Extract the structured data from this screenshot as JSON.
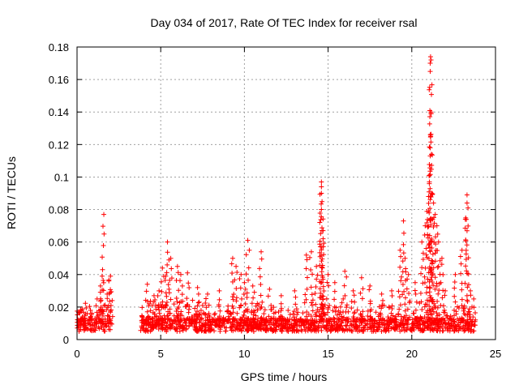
{
  "chart_data": {
    "type": "scatter",
    "title": "Day 034 of 2017, Rate Of TEC Index for receiver rsal",
    "xlabel": "GPS time / hours",
    "ylabel": "ROTI / TECUs",
    "xlim": [
      0,
      25
    ],
    "ylim": [
      0,
      0.18
    ],
    "x_ticks": [
      "0",
      "5",
      "10",
      "15",
      "20",
      "25"
    ],
    "y_ticks": [
      "0",
      "0.02",
      "0.04",
      "0.06",
      "0.08",
      "0.1",
      "0.12",
      "0.14",
      "0.16",
      "0.18"
    ],
    "grid": true,
    "marker": "+",
    "color": "#ff0000",
    "background_band": {
      "baseline": 0.009,
      "noise": 0.004,
      "segments": [
        [
          0.0,
          2.1
        ],
        [
          3.8,
          23.8
        ]
      ]
    },
    "points": [
      [
        0.4,
        0.012
      ],
      [
        0.8,
        0.018
      ],
      [
        1.2,
        0.025
      ],
      [
        1.4,
        0.033
      ],
      [
        1.5,
        0.039
      ],
      [
        1.6,
        0.077
      ],
      [
        1.8,
        0.028
      ],
      [
        1.9,
        0.036
      ],
      [
        2.0,
        0.039
      ],
      [
        2.1,
        0.024
      ],
      [
        4.2,
        0.034
      ],
      [
        4.6,
        0.027
      ],
      [
        4.9,
        0.03
      ],
      [
        5.1,
        0.044
      ],
      [
        5.3,
        0.039
      ],
      [
        5.4,
        0.06
      ],
      [
        5.6,
        0.05
      ],
      [
        6.0,
        0.045
      ],
      [
        6.2,
        0.04
      ],
      [
        6.6,
        0.041
      ],
      [
        7.2,
        0.032
      ],
      [
        7.8,
        0.028
      ],
      [
        8.5,
        0.03
      ],
      [
        9.3,
        0.05
      ],
      [
        9.5,
        0.045
      ],
      [
        9.8,
        0.04
      ],
      [
        10.0,
        0.035
      ],
      [
        10.2,
        0.061
      ],
      [
        10.5,
        0.033
      ],
      [
        11.0,
        0.054
      ],
      [
        11.5,
        0.031
      ],
      [
        12.2,
        0.027
      ],
      [
        13.0,
        0.03
      ],
      [
        13.7,
        0.052
      ],
      [
        14.0,
        0.054
      ],
      [
        14.3,
        0.045
      ],
      [
        14.6,
        0.097
      ],
      [
        14.6,
        0.094
      ],
      [
        14.6,
        0.09
      ],
      [
        14.6,
        0.08
      ],
      [
        14.7,
        0.067
      ],
      [
        14.7,
        0.062
      ],
      [
        15.0,
        0.04
      ],
      [
        15.4,
        0.035
      ],
      [
        16.0,
        0.042
      ],
      [
        16.5,
        0.03
      ],
      [
        17.0,
        0.038
      ],
      [
        17.5,
        0.033
      ],
      [
        18.2,
        0.028
      ],
      [
        18.8,
        0.03
      ],
      [
        19.3,
        0.055
      ],
      [
        19.5,
        0.073
      ],
      [
        19.6,
        0.05
      ],
      [
        19.8,
        0.04
      ],
      [
        20.2,
        0.035
      ],
      [
        20.6,
        0.06
      ],
      [
        20.8,
        0.07
      ],
      [
        21.0,
        0.079
      ],
      [
        21.0,
        0.088
      ],
      [
        21.05,
        0.097
      ],
      [
        21.1,
        0.118
      ],
      [
        21.1,
        0.113
      ],
      [
        21.15,
        0.14
      ],
      [
        21.15,
        0.139
      ],
      [
        21.1,
        0.165
      ],
      [
        21.1,
        0.17
      ],
      [
        21.12,
        0.174
      ],
      [
        21.15,
        0.172
      ],
      [
        21.3,
        0.084
      ],
      [
        21.4,
        0.077
      ],
      [
        21.5,
        0.07
      ],
      [
        21.6,
        0.06
      ],
      [
        21.8,
        0.05
      ],
      [
        22.0,
        0.03
      ],
      [
        22.6,
        0.04
      ],
      [
        23.0,
        0.055
      ],
      [
        23.2,
        0.074
      ],
      [
        23.3,
        0.084
      ],
      [
        23.3,
        0.089
      ],
      [
        23.5,
        0.03
      ],
      [
        23.7,
        0.025
      ]
    ]
  }
}
